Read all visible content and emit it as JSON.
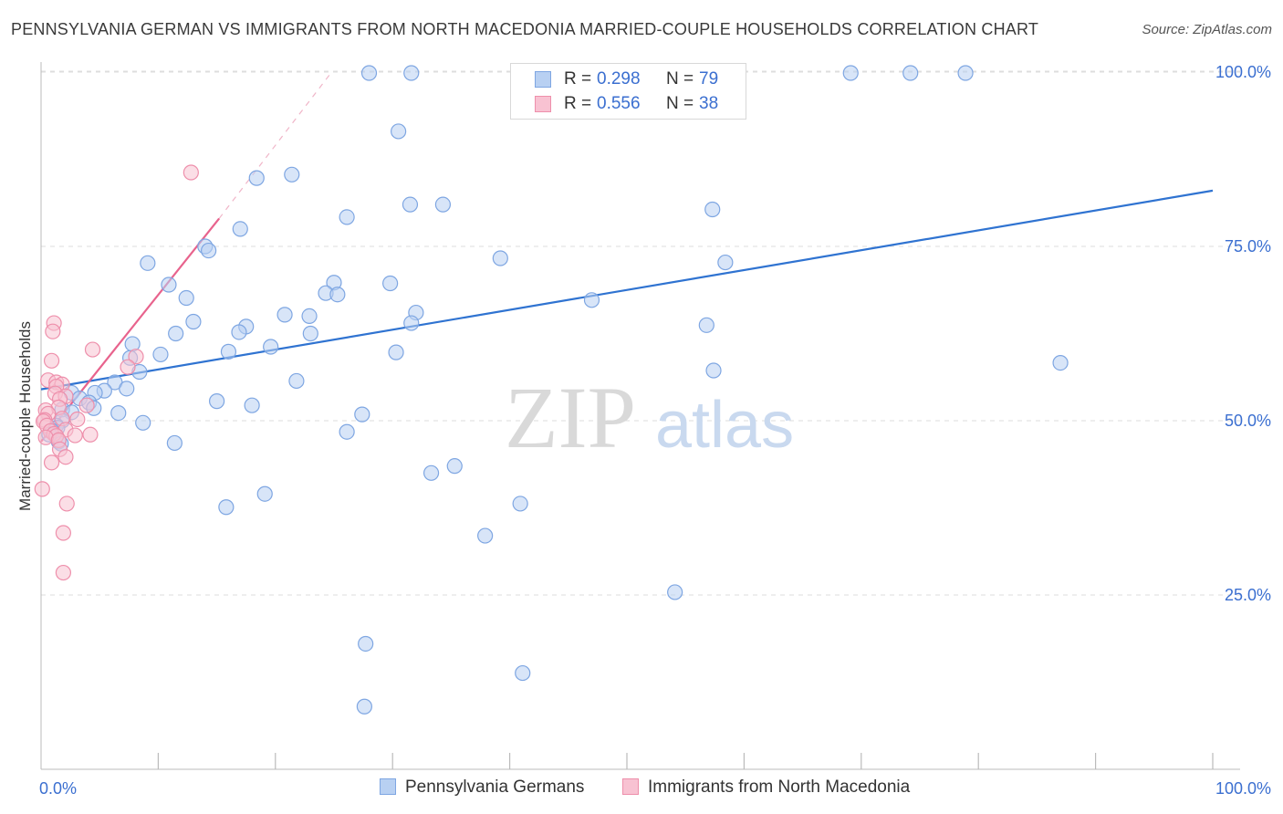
{
  "title": "PENNSYLVANIA GERMAN VS IMMIGRANTS FROM NORTH MACEDONIA MARRIED-COUPLE HOUSEHOLDS CORRELATION CHART",
  "source": "Source: ZipAtlas.com",
  "watermark": {
    "zip": "ZIP",
    "atlas": "atlas"
  },
  "legend": {
    "r_label": "R =",
    "n_label": "N =",
    "series": [
      {
        "name": "Pennsylvania Germans",
        "r": "0.298",
        "n": "79"
      },
      {
        "name": "Immigrants from North Macedonia",
        "r": "0.556",
        "n": "38"
      }
    ]
  },
  "colors": {
    "blue_fill": "#b8d0f2",
    "blue_stroke": "#7ea6e2",
    "blue_line": "#2f73d1",
    "pink_fill": "#f8c2d2",
    "pink_stroke": "#ee8fab",
    "pink_line": "#e8638d",
    "grid": "#dddddd",
    "axis_text": "#3b6fd0"
  },
  "chart_data": {
    "type": "scatter",
    "title": "PENNSYLVANIA GERMAN VS IMMIGRANTS FROM NORTH MACEDONIA MARRIED-COUPLE HOUSEHOLDS CORRELATION CHART",
    "xlabel": "",
    "ylabel": "Married-couple Households",
    "xlim": [
      0,
      100
    ],
    "ylim": [
      0,
      100
    ],
    "x_tick_labels": [
      "0.0%",
      "100.0%"
    ],
    "y_ticks": [
      25,
      50,
      75,
      100
    ],
    "y_tick_labels": [
      "25.0%",
      "50.0%",
      "75.0%",
      "100.0%"
    ],
    "grid": true,
    "series": [
      {
        "name": "Pennsylvania Germans",
        "r": 0.298,
        "n": 79,
        "trend": {
          "x0": 0,
          "y0": 54.5,
          "x1": 100,
          "y1": 83.0
        },
        "points": [
          [
            28,
            102
          ],
          [
            31.6,
            102
          ],
          [
            69.1,
            102
          ],
          [
            74.2,
            102
          ],
          [
            78.9,
            102
          ],
          [
            30.5,
            91.5
          ],
          [
            21.4,
            85.3
          ],
          [
            18.4,
            84.8
          ],
          [
            31.5,
            81.0
          ],
          [
            34.3,
            81.0
          ],
          [
            26.1,
            79.2
          ],
          [
            57.3,
            80.3
          ],
          [
            17.0,
            77.5
          ],
          [
            14.0,
            75.0
          ],
          [
            14.3,
            74.4
          ],
          [
            39.2,
            73.3
          ],
          [
            58.4,
            72.7
          ],
          [
            9.1,
            72.6
          ],
          [
            10.9,
            69.5
          ],
          [
            25.0,
            69.8
          ],
          [
            29.8,
            69.7
          ],
          [
            24.3,
            68.3
          ],
          [
            25.3,
            68.1
          ],
          [
            12.4,
            67.6
          ],
          [
            47.0,
            67.3
          ],
          [
            32.0,
            65.5
          ],
          [
            20.8,
            65.2
          ],
          [
            22.9,
            65.0
          ],
          [
            13.0,
            64.2
          ],
          [
            31.6,
            64.0
          ],
          [
            17.5,
            63.5
          ],
          [
            11.5,
            62.5
          ],
          [
            16.9,
            62.7
          ],
          [
            23.0,
            62.5
          ],
          [
            56.8,
            63.7
          ],
          [
            7.8,
            61.0
          ],
          [
            19.6,
            60.6
          ],
          [
            16.0,
            59.9
          ],
          [
            10.2,
            59.5
          ],
          [
            7.6,
            59.0
          ],
          [
            30.3,
            59.8
          ],
          [
            87.0,
            58.3
          ],
          [
            57.4,
            57.2
          ],
          [
            8.4,
            57.0
          ],
          [
            21.8,
            55.7
          ],
          [
            6.3,
            55.5
          ],
          [
            7.3,
            54.6
          ],
          [
            5.4,
            54.3
          ],
          [
            4.6,
            54.0
          ],
          [
            2.6,
            54.0
          ],
          [
            3.3,
            53.2
          ],
          [
            4.1,
            52.6
          ],
          [
            15.0,
            52.8
          ],
          [
            18.0,
            52.2
          ],
          [
            4.5,
            51.8
          ],
          [
            1.8,
            51.6
          ],
          [
            2.6,
            51.2
          ],
          [
            6.6,
            51.1
          ],
          [
            27.4,
            50.9
          ],
          [
            8.7,
            49.7
          ],
          [
            1.8,
            50.0
          ],
          [
            1.3,
            49.3
          ],
          [
            1.4,
            49.0
          ],
          [
            0.9,
            48.6
          ],
          [
            0.7,
            48.0
          ],
          [
            26.1,
            48.4
          ],
          [
            11.4,
            46.8
          ],
          [
            1.5,
            47.0
          ],
          [
            1.7,
            46.7
          ],
          [
            35.3,
            43.5
          ],
          [
            33.3,
            42.5
          ],
          [
            19.1,
            39.5
          ],
          [
            40.9,
            38.1
          ],
          [
            15.8,
            37.6
          ],
          [
            37.9,
            33.5
          ],
          [
            54.1,
            25.4
          ],
          [
            27.7,
            18.0
          ],
          [
            41.1,
            13.8
          ],
          [
            27.6,
            9.0
          ]
        ]
      },
      {
        "name": "Immigrants from North Macedonia",
        "r": 0.556,
        "n": 38,
        "trend": {
          "x0": 0,
          "y0": 47.0,
          "x1": 15.2,
          "y1": 79.0
        },
        "trend_extension": {
          "x0": 15.2,
          "y0": 79.0,
          "x1": 24.8,
          "y1": 100.0
        },
        "points": [
          [
            12.8,
            85.6
          ],
          [
            1.1,
            64.0
          ],
          [
            1.0,
            62.8
          ],
          [
            4.4,
            60.2
          ],
          [
            8.1,
            59.2
          ],
          [
            0.9,
            58.6
          ],
          [
            7.4,
            57.7
          ],
          [
            0.6,
            55.8
          ],
          [
            1.3,
            55.5
          ],
          [
            1.8,
            55.2
          ],
          [
            1.3,
            54.9
          ],
          [
            1.2,
            53.9
          ],
          [
            2.1,
            53.5
          ],
          [
            1.6,
            53.1
          ],
          [
            1.5,
            51.9
          ],
          [
            3.9,
            52.2
          ],
          [
            0.4,
            51.5
          ],
          [
            0.6,
            51.0
          ],
          [
            1.8,
            50.3
          ],
          [
            3.1,
            50.2
          ],
          [
            0.3,
            50.1
          ],
          [
            0.2,
            49.9
          ],
          [
            0.5,
            49.3
          ],
          [
            2.1,
            48.7
          ],
          [
            0.8,
            48.5
          ],
          [
            1.1,
            48.1
          ],
          [
            1.3,
            47.8
          ],
          [
            4.2,
            48.0
          ],
          [
            2.9,
            47.9
          ],
          [
            0.4,
            47.6
          ],
          [
            1.5,
            47.2
          ],
          [
            1.6,
            45.9
          ],
          [
            2.1,
            44.8
          ],
          [
            0.9,
            44.0
          ],
          [
            0.1,
            40.2
          ],
          [
            2.2,
            38.1
          ],
          [
            1.9,
            33.9
          ],
          [
            1.9,
            28.2
          ]
        ]
      }
    ]
  }
}
